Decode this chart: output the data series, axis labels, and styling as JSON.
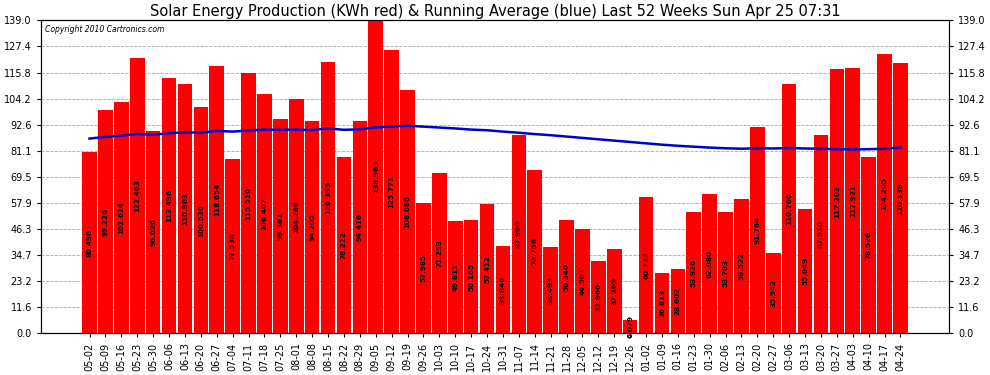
{
  "title": "Solar Energy Production (KWh red) & Running Average (blue) Last 52 Weeks Sun Apr 25 07:31",
  "copyright": "Copyright 2010 Cartronics.com",
  "bar_color": "#FF0000",
  "avg_line_color": "#0000CC",
  "background_color": "#FFFFFF",
  "grid_color": "#AAAAAA",
  "ylim": [
    0,
    139.0
  ],
  "yticks": [
    0.0,
    11.6,
    23.2,
    34.7,
    46.3,
    57.9,
    69.5,
    81.1,
    92.6,
    104.2,
    115.8,
    127.4,
    139.0
  ],
  "categories": [
    "05-02",
    "05-09",
    "05-16",
    "05-23",
    "05-30",
    "06-06",
    "06-13",
    "06-20",
    "06-27",
    "07-04",
    "07-11",
    "07-18",
    "07-25",
    "08-01",
    "08-08",
    "08-15",
    "08-22",
    "08-29",
    "09-05",
    "09-12",
    "09-19",
    "09-26",
    "10-03",
    "10-10",
    "10-17",
    "10-24",
    "10-31",
    "11-07",
    "11-14",
    "11-21",
    "11-28",
    "12-05",
    "12-12",
    "12-19",
    "12-26",
    "01-02",
    "01-09",
    "01-16",
    "01-23",
    "01-30",
    "02-06",
    "02-13",
    "02-20",
    "02-27",
    "03-06",
    "03-13",
    "03-20",
    "03-27",
    "04-03",
    "04-10",
    "04-17",
    "04-24"
  ],
  "values": [
    80.49,
    99.226,
    102.624,
    122.463,
    90.026,
    113.496,
    110.903,
    100.53,
    118.654,
    77.538,
    115.51,
    106.407,
    95.361,
    104.266,
    94.205,
    120.395,
    78.222,
    94.416,
    138.963,
    125.771,
    108.08,
    57.985,
    71.253,
    49.811,
    50.165,
    57.412,
    38.846,
    87.99,
    72.758,
    38.493,
    50.34,
    46.501,
    31.966,
    37.269,
    6.079,
    60.732,
    26.813,
    28.602,
    53.926,
    62.08,
    53.703,
    59.522,
    91.764,
    35.542,
    110.706,
    55.049,
    87.91,
    117.202,
    117.921,
    78.526,
    124.205,
    120.139
  ],
  "running_avg": [
    86.5,
    87.3,
    87.8,
    88.6,
    88.2,
    88.9,
    89.3,
    89.1,
    89.9,
    89.6,
    90.1,
    90.5,
    90.4,
    90.5,
    90.3,
    91.0,
    90.4,
    90.6,
    91.5,
    91.8,
    92.2,
    91.8,
    91.4,
    91.0,
    90.5,
    90.2,
    89.6,
    89.1,
    88.5,
    88.0,
    87.4,
    86.8,
    86.2,
    85.6,
    85.0,
    84.4,
    83.8,
    83.3,
    82.9,
    82.5,
    82.2,
    82.0,
    82.2,
    82.1,
    82.3,
    82.1,
    82.0,
    81.8,
    81.7,
    81.8,
    82.0,
    82.5
  ],
  "title_fontsize": 10.5,
  "tick_fontsize": 7,
  "value_fontsize": 5.2
}
